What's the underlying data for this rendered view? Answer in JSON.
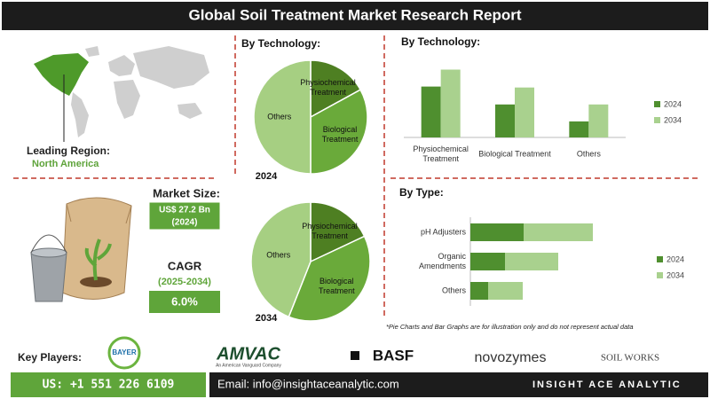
{
  "header": {
    "title": "Global Soil Treatment Market Research Report"
  },
  "region": {
    "label": "Leading Region:",
    "value": "North America"
  },
  "market_size": {
    "label": "Market Size:",
    "value": "US$ 27.2 Bn",
    "year": "(2024)"
  },
  "cagr": {
    "label": "CAGR",
    "period": "(2025-2034)",
    "value": "6.0%"
  },
  "chart_data": [
    {
      "type": "pie",
      "title": "By Technology:",
      "caption": "2024",
      "categories": [
        "Physiochemical Treatment",
        "Biological Treatment",
        "Others"
      ],
      "values": [
        17,
        33,
        50
      ],
      "colors": [
        "#4e7f22",
        "#6aaa3a",
        "#a6cf82"
      ]
    },
    {
      "type": "pie",
      "caption": "2034",
      "categories": [
        "Physiochemical Treatment",
        "Biological Treatment",
        "Others"
      ],
      "values": [
        18,
        38,
        44
      ],
      "colors": [
        "#4e7f22",
        "#6aaa3a",
        "#a6cf82"
      ]
    },
    {
      "type": "bar",
      "title": "By Technology:",
      "categories": [
        "Physiochemical Treatment",
        "Biological Treatment",
        "Others"
      ],
      "series": [
        {
          "name": "2024",
          "color": "#4f8f2f",
          "values": [
            54,
            35,
            17
          ]
        },
        {
          "name": "2034",
          "color": "#a9d18e",
          "values": [
            72,
            53,
            35
          ]
        }
      ],
      "ylim": [
        0,
        80
      ],
      "legend": "right"
    },
    {
      "type": "stacked_barh",
      "title": "By Type:",
      "categories": [
        "pH Adjusters",
        "Organic Amendments",
        "Others"
      ],
      "series": [
        {
          "name": "2024",
          "color": "#4f8f2f",
          "values": [
            60,
            39,
            20
          ]
        },
        {
          "name": "2034",
          "color": "#a9d18e",
          "values": [
            78,
            60,
            39
          ]
        }
      ],
      "xlim": [
        0,
        150
      ],
      "legend": "right"
    }
  ],
  "footnote": "*Pie Charts and Bar Graphs are for illustration only and do not represent actual data",
  "key_players": {
    "label": "Key Players:",
    "names": [
      "BAYER",
      "AMVAC",
      "BASF",
      "novozymes",
      "SOIL WORKS"
    ],
    "amvac_tagline": "An American Vanguard Company"
  },
  "footer": {
    "phone": "US: +1 551 226 6109",
    "email": "Email: info@insightaceanalytic.com",
    "brand": "INSIGHT ACE ANALYTIC"
  }
}
